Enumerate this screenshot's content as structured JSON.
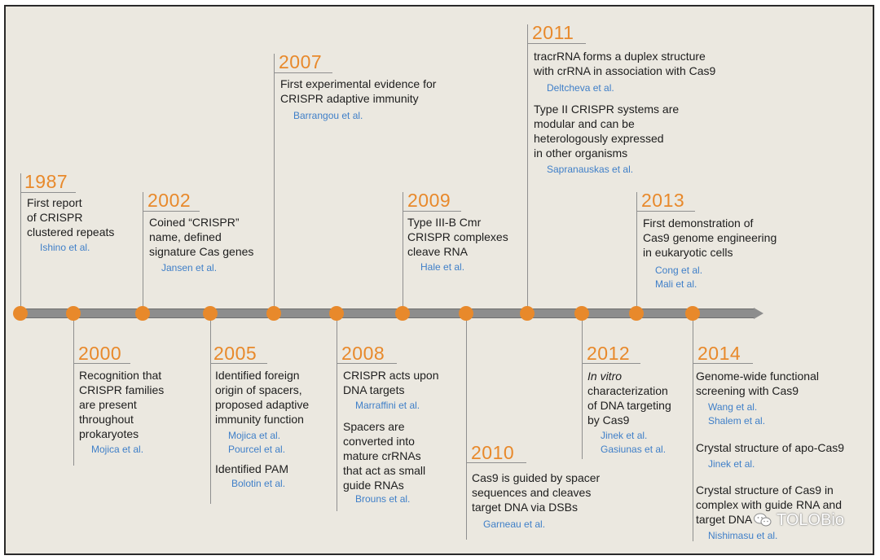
{
  "events": {
    "e1987": {
      "year": "1987",
      "lines": [
        "First report",
        "of CRISPR",
        "clustered repeats"
      ],
      "refs": [
        "Ishino et al."
      ]
    },
    "e2000": {
      "year": "2000",
      "lines": [
        "Recognition that",
        "CRISPR families",
        "are present",
        "throughout",
        "prokaryotes"
      ],
      "refs": [
        "Mojica et al."
      ]
    },
    "e2002": {
      "year": "2002",
      "lines": [
        "Coined “CRISPR”",
        "name, defined",
        "signature Cas genes"
      ],
      "refs": [
        "Jansen et al."
      ]
    },
    "e2005": {
      "year": "2005",
      "lines": [
        "Identified foreign",
        "origin of spacers,",
        "proposed adaptive",
        "immunity function"
      ],
      "refs": [
        "Mojica et al.",
        "Pourcel et al."
      ],
      "lines2": [
        "Identified PAM"
      ],
      "refs2": [
        "Bolotin et al."
      ]
    },
    "e2007": {
      "year": "2007",
      "lines": [
        "First experimental evidence for",
        "CRISPR adaptive immunity"
      ],
      "refs": [
        "Barrangou et al."
      ]
    },
    "e2008": {
      "year": "2008",
      "lines": [
        "CRISPR acts upon",
        "DNA targets"
      ],
      "refs": [
        "Marraffini et al."
      ],
      "lines2": [
        "Spacers are",
        "converted into",
        "mature crRNAs",
        "that act as small",
        "guide RNAs"
      ],
      "refs2": [
        "Brouns et al."
      ]
    },
    "e2009": {
      "year": "2009",
      "lines": [
        "Type III-B Cmr",
        "CRISPR complexes",
        "cleave RNA"
      ],
      "refs": [
        "Hale et al."
      ]
    },
    "e2010": {
      "year": "2010",
      "lines": [
        "Cas9 is guided by spacer",
        "sequences and cleaves",
        "target DNA via DSBs"
      ],
      "refs": [
        "Garneau et al."
      ]
    },
    "e2011": {
      "year": "2011",
      "lines": [
        "tracrRNA forms a duplex structure",
        "with crRNA in association with Cas9"
      ],
      "refs": [
        "Deltcheva et al."
      ],
      "lines2": [
        "Type II CRISPR systems are",
        "modular and can be",
        "heterologously expressed",
        "in other organisms"
      ],
      "refs2": [
        "Sapranauskas et al."
      ]
    },
    "e2012": {
      "year": "2012",
      "lines": [
        "In vitro",
        "characterization",
        "of DNA targeting",
        "by Cas9"
      ],
      "refs": [
        "Jinek et al.",
        "Gasiunas et al."
      ]
    },
    "e2013": {
      "year": "2013",
      "lines": [
        "First demonstration of",
        "Cas9 genome engineering",
        "in eukaryotic cells"
      ],
      "refs": [
        "Cong et al.",
        "Mali et al."
      ]
    },
    "e2014": {
      "year": "2014",
      "lines": [
        "Genome-wide functional",
        "screening with Cas9"
      ],
      "refs": [
        "Wang et al.",
        "Shalem et al."
      ],
      "lines2": [
        "Crystal structure of apo-Cas9"
      ],
      "refs2": [
        "Jinek et al."
      ],
      "lines3": [
        "Crystal structure of Cas9 in",
        "complex with guide RNA and",
        "target DNA"
      ],
      "refs3": [
        "Nishimasu et al."
      ]
    }
  },
  "watermark": {
    "text": "TOLOBio"
  },
  "colors": {
    "accent": "#e8892b",
    "ref": "#3f7fc8",
    "background": "#ebe8e0",
    "axis": "#8d8d8d"
  }
}
